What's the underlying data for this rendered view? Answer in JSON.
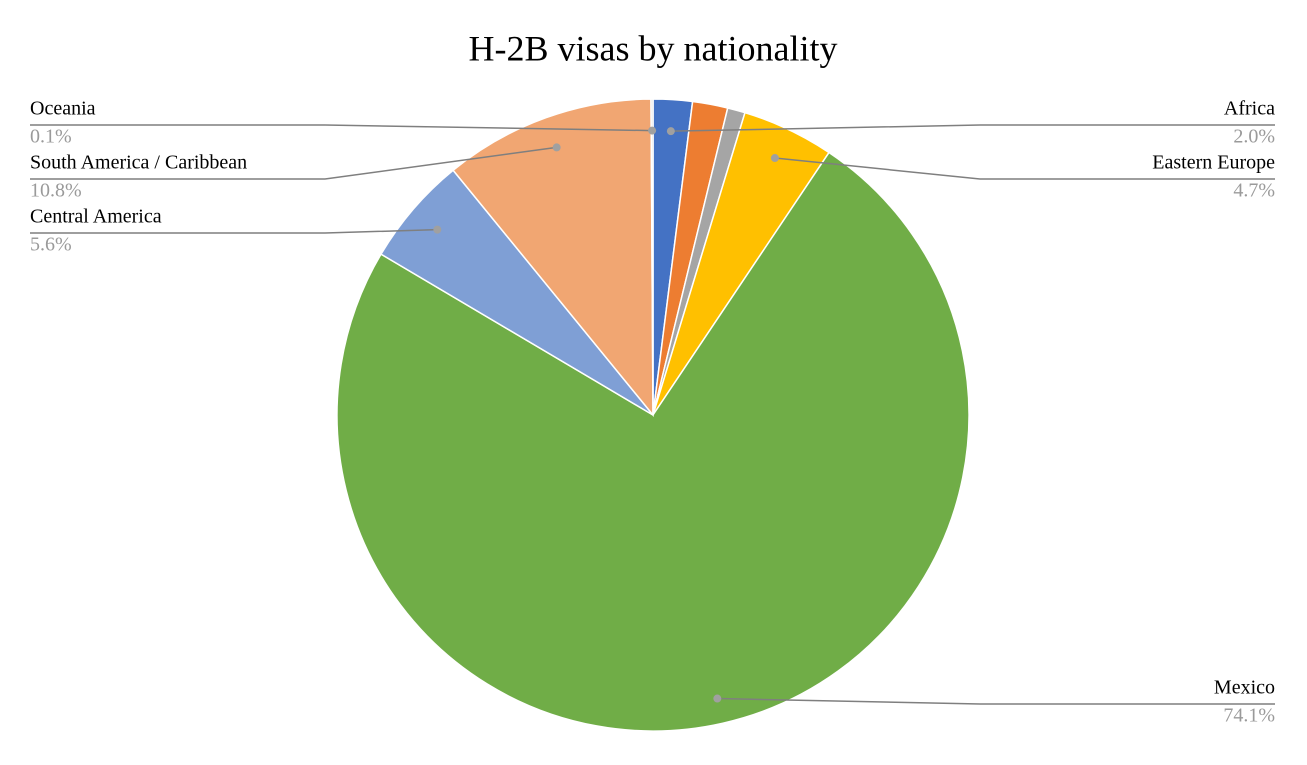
{
  "chart_data": {
    "type": "pie",
    "title": "H-2B visas by nationality",
    "categories": [
      "Africa",
      null,
      null,
      "Eastern Europe",
      "Mexico",
      "Central America",
      "South America / Caribbean",
      "Oceania"
    ],
    "values": [
      2.0,
      1.8,
      0.9,
      4.7,
      74.1,
      5.6,
      10.8,
      0.1
    ],
    "value_labels": [
      "2.0%",
      null,
      null,
      "4.7%",
      "74.1%",
      "5.6%",
      "10.8%",
      "0.1%"
    ],
    "colors": [
      "#4472c4",
      "#ed7d31",
      "#a5a5a5",
      "#ffc000",
      "#70ad47",
      "#7f9fd5",
      "#f1a672",
      "#c9c9c9"
    ]
  }
}
